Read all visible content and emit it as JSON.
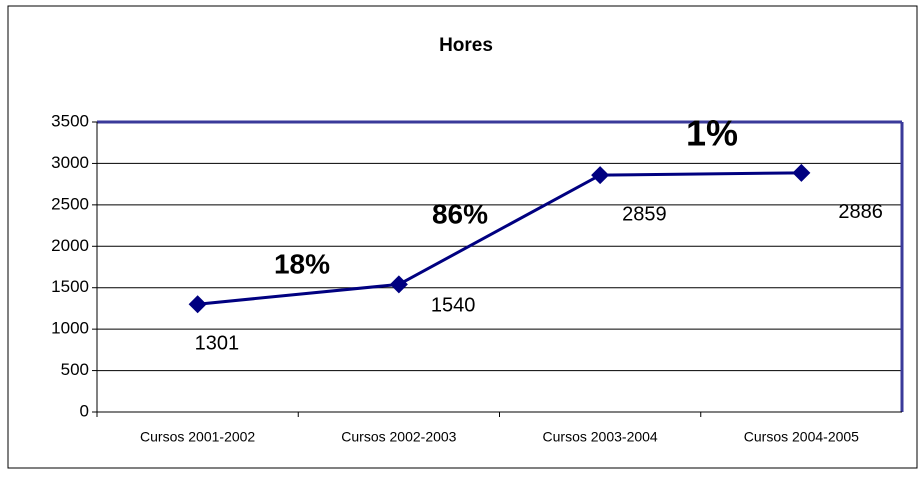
{
  "chart_data": {
    "type": "line",
    "title": "Hores",
    "categories": [
      "Cursos 2001-2002",
      "Cursos 2002-2003",
      "Cursos 2003-2004",
      "Cursos 2004-2005"
    ],
    "values": [
      1301,
      1540,
      2859,
      2886
    ],
    "color": "#000080",
    "ylim": [
      0,
      3500
    ],
    "yticks": [
      0,
      500,
      1000,
      1500,
      2000,
      2500,
      3000,
      3500
    ],
    "grid": true,
    "annotations": [
      "18%",
      "86%",
      "1%"
    ]
  }
}
